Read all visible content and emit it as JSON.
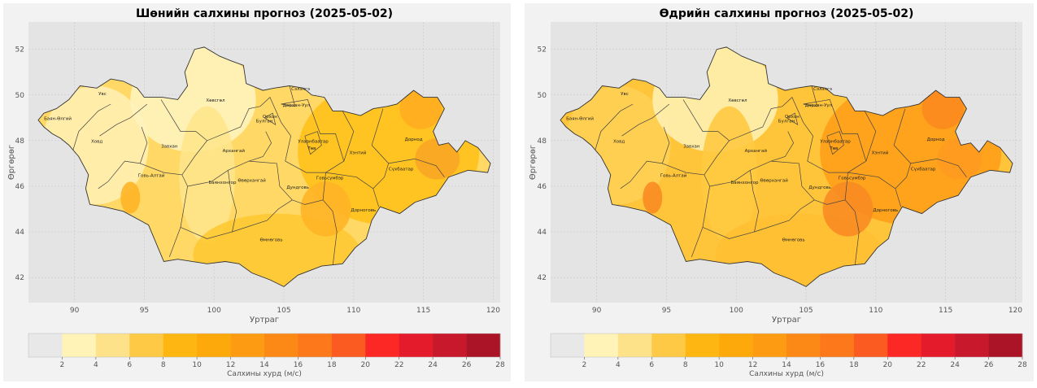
{
  "panels": [
    {
      "title": "Шөнийн салхины прогноз (2025-05-02)",
      "variant": "night",
      "fills": {
        "base": "#ffd866",
        "west": "#fff0b0",
        "north": "#fff3bd",
        "center": "#fee58a",
        "east": "#ffc21a",
        "south": "#ffc933",
        "hot1": "#ffad1f",
        "hot2": "#ffb426",
        "hot3": "#f9a625"
      }
    },
    {
      "title": "Өдрийн салхины прогноз (2025-05-02)",
      "variant": "day",
      "fills": {
        "base": "#ffc53a",
        "west": "#ffcf55",
        "north": "#fff0b0",
        "center": "#ffc941",
        "east": "#ff9f1a",
        "south": "#ffbf33",
        "hot1": "#fb8a1e",
        "hot2": "#f98b22",
        "hot3": "#ff9a1f"
      }
    }
  ],
  "axes": {
    "xlabel": "Уртраг",
    "ylabel": "Өргөрөг",
    "xticks": [
      90,
      95,
      100,
      105,
      110,
      115,
      120
    ],
    "yticks": [
      42,
      44,
      46,
      48,
      50,
      52
    ],
    "xlim": [
      86.7,
      120.5
    ],
    "ylim": [
      40.9,
      53.2
    ],
    "grid": true
  },
  "provinces": [
    {
      "name": "Баян-Өлгий",
      "lon": 88.8,
      "lat": 48.9
    },
    {
      "name": "Увс",
      "lon": 92.0,
      "lat": 50.0
    },
    {
      "name": "Ховд",
      "lon": 91.6,
      "lat": 47.9
    },
    {
      "name": "Завхан",
      "lon": 96.8,
      "lat": 47.7
    },
    {
      "name": "Говь-Алтай",
      "lon": 95.5,
      "lat": 46.4
    },
    {
      "name": "Хөвсгөл",
      "lon": 100.1,
      "lat": 49.7
    },
    {
      "name": "Архангай",
      "lon": 101.4,
      "lat": 47.5
    },
    {
      "name": "Баянхонгор",
      "lon": 100.6,
      "lat": 46.1
    },
    {
      "name": "Өвөрхангай",
      "lon": 102.7,
      "lat": 46.2
    },
    {
      "name": "Булган",
      "lon": 103.6,
      "lat": 48.8
    },
    {
      "name": "Орхон",
      "lon": 104.0,
      "lat": 49.0
    },
    {
      "name": "Сэлэнгэ",
      "lon": 106.2,
      "lat": 50.2
    },
    {
      "name": "Дархан-Уул",
      "lon": 105.9,
      "lat": 49.5
    },
    {
      "name": "Улаанбаатар",
      "lon": 107.1,
      "lat": 47.9
    },
    {
      "name": "Төв",
      "lon": 107.0,
      "lat": 47.6
    },
    {
      "name": "Хэнтий",
      "lon": 110.3,
      "lat": 47.4
    },
    {
      "name": "Дорнод",
      "lon": 114.3,
      "lat": 48.0
    },
    {
      "name": "Сүхбаатар",
      "lon": 113.4,
      "lat": 46.7
    },
    {
      "name": "Говьсүмбэр",
      "lon": 108.3,
      "lat": 46.3
    },
    {
      "name": "Дундговь",
      "lon": 106.0,
      "lat": 45.9
    },
    {
      "name": "Дорноговь",
      "lon": 110.7,
      "lat": 44.9
    },
    {
      "name": "Өмнөговь",
      "lon": 104.1,
      "lat": 43.6
    }
  ],
  "colorbar": {
    "label": "Салхины хурд (м/с)",
    "ticks": [
      "2",
      "4",
      "6",
      "8",
      "10",
      "12",
      "14",
      "16",
      "18",
      "20",
      "22",
      "24",
      "26",
      "28"
    ],
    "colors": [
      "#e8e8e8",
      "#fff3b8",
      "#fee28a",
      "#fec944",
      "#feb712",
      "#fea90b",
      "#fd9c13",
      "#fc8916",
      "#fc781b",
      "#fb5a21",
      "#fc2826",
      "#e31b2a",
      "#c8182b",
      "#ab1426"
    ]
  }
}
